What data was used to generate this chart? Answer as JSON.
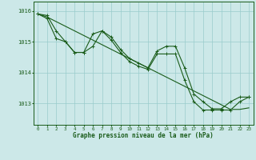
{
  "bg_color": "#cce8e8",
  "grid_color": "#99cccc",
  "line_color": "#1a5c1a",
  "xlabel": "Graphe pression niveau de la mer (hPa)",
  "ylabel_ticks": [
    1013,
    1014,
    1015,
    1016
  ],
  "xlim": [
    -0.5,
    23.5
  ],
  "ylim": [
    1012.3,
    1016.3
  ],
  "hours": [
    0,
    1,
    2,
    3,
    4,
    5,
    6,
    7,
    8,
    9,
    10,
    11,
    12,
    13,
    14,
    15,
    16,
    17,
    18,
    19,
    20,
    21,
    22,
    23
  ],
  "series1": [
    1015.9,
    1015.85,
    1015.35,
    1015.0,
    1014.65,
    1014.65,
    1015.25,
    1015.35,
    1015.15,
    1014.75,
    1014.45,
    1014.3,
    1014.15,
    1014.7,
    1014.85,
    1014.85,
    1014.15,
    1013.3,
    1013.05,
    1012.82,
    1012.82,
    1013.05,
    1013.2,
    1013.2
  ],
  "series2": [
    1015.9,
    1015.75,
    1015.1,
    1015.0,
    1014.65,
    1014.65,
    1014.85,
    1015.35,
    1015.05,
    1014.65,
    1014.35,
    1014.2,
    1014.1,
    1014.6,
    1014.6,
    1014.6,
    1013.75,
    1013.05,
    1012.78,
    1012.78,
    1012.78,
    1012.78,
    1013.05,
    1013.2
  ],
  "series_trend": [
    1015.9,
    1015.8,
    1015.65,
    1015.5,
    1015.35,
    1015.2,
    1015.05,
    1014.9,
    1014.75,
    1014.6,
    1014.45,
    1014.3,
    1014.15,
    1014.0,
    1013.85,
    1013.7,
    1013.55,
    1013.4,
    1013.25,
    1013.1,
    1012.95,
    1012.8,
    1012.8,
    1012.85
  ],
  "xlabel_fontsize": 5.5,
  "ylabel_fontsize": 5.0,
  "xtick_fontsize": 4.2,
  "lw": 0.8,
  "marker_size": 2.5
}
